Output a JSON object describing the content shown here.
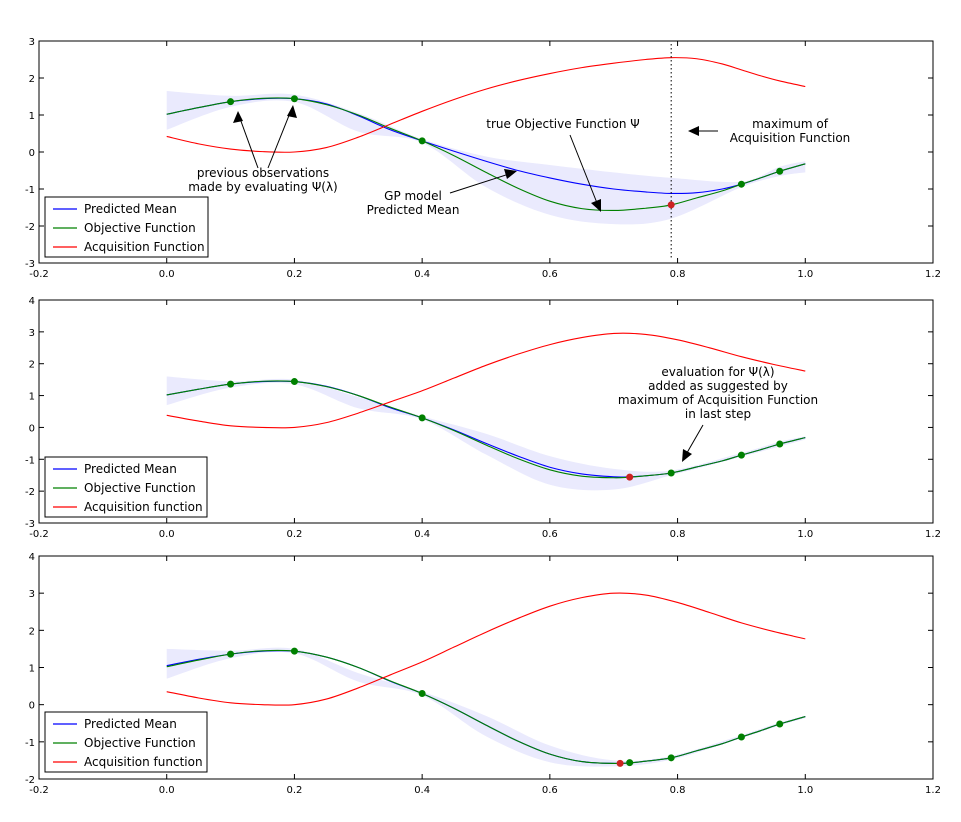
{
  "chart_data": [
    {
      "type": "line",
      "xlim": [
        -0.2,
        1.2
      ],
      "ylim": [
        -3,
        3
      ],
      "xticks": [
        "-0.2",
        "0.0",
        "0.2",
        "0.4",
        "0.6",
        "0.8",
        "1.0",
        "1.2"
      ],
      "yticks": [
        "-3",
        "-2",
        "-1",
        "0",
        "1",
        "2",
        "3"
      ],
      "band": {
        "x": [
          0.0,
          0.1,
          0.2,
          0.3,
          0.4,
          0.5,
          0.6,
          0.7,
          0.79,
          0.9,
          0.96,
          1.0
        ],
        "upper": [
          1.65,
          1.52,
          1.55,
          1.05,
          0.35,
          -0.12,
          -0.35,
          -0.55,
          -0.7,
          -0.8,
          -0.4,
          -0.25
        ],
        "lower": [
          0.6,
          1.22,
          1.35,
          0.55,
          0.25,
          -0.95,
          -1.7,
          -1.95,
          -1.8,
          -0.95,
          -0.65,
          -0.55
        ]
      },
      "series": [
        {
          "name": "Predicted Mean",
          "color": "#0000ff",
          "x": [
            0.0,
            0.05,
            0.1,
            0.15,
            0.2,
            0.25,
            0.3,
            0.35,
            0.4,
            0.45,
            0.5,
            0.55,
            0.6,
            0.65,
            0.7,
            0.75,
            0.79,
            0.83,
            0.87,
            0.9,
            0.93,
            0.96,
            1.0
          ],
          "y": [
            1.02,
            1.2,
            1.36,
            1.44,
            1.44,
            1.3,
            0.98,
            0.6,
            0.3,
            0.02,
            -0.25,
            -0.5,
            -0.7,
            -0.87,
            -1.0,
            -1.08,
            -1.12,
            -1.1,
            -1.0,
            -0.87,
            -0.7,
            -0.52,
            -0.32
          ]
        },
        {
          "name": "Objective Function",
          "color": "#008000",
          "x": [
            0.0,
            0.05,
            0.1,
            0.15,
            0.2,
            0.25,
            0.3,
            0.35,
            0.4,
            0.45,
            0.5,
            0.55,
            0.6,
            0.65,
            0.7,
            0.75,
            0.79,
            0.83,
            0.87,
            0.9,
            0.93,
            0.96,
            1.0
          ],
          "y": [
            1.02,
            1.2,
            1.36,
            1.45,
            1.44,
            1.28,
            1.0,
            0.64,
            0.3,
            -0.1,
            -0.55,
            -0.98,
            -1.33,
            -1.53,
            -1.58,
            -1.52,
            -1.43,
            -1.24,
            -1.05,
            -0.87,
            -0.7,
            -0.52,
            -0.32
          ]
        },
        {
          "name": "Acquisition Function",
          "color": "#ff0000",
          "x": [
            0.0,
            0.05,
            0.1,
            0.15,
            0.2,
            0.25,
            0.3,
            0.35,
            0.4,
            0.45,
            0.5,
            0.55,
            0.6,
            0.65,
            0.7,
            0.75,
            0.79,
            0.83,
            0.87,
            0.9,
            0.93,
            0.96,
            1.0
          ],
          "y": [
            0.42,
            0.22,
            0.08,
            0.01,
            0.0,
            0.12,
            0.4,
            0.75,
            1.1,
            1.42,
            1.7,
            1.93,
            2.12,
            2.28,
            2.4,
            2.5,
            2.55,
            2.52,
            2.38,
            2.22,
            2.06,
            1.92,
            1.77
          ]
        }
      ],
      "observations": {
        "x": [
          0.1,
          0.2,
          0.4,
          0.9,
          0.96
        ],
        "y": [
          1.36,
          1.44,
          0.3,
          -0.87,
          -0.52
        ],
        "color": "#008000"
      },
      "next_point": {
        "x": 0.79,
        "y": -1.43,
        "color": "#cc2222"
      },
      "vline": {
        "x": 0.79
      },
      "legend": {
        "placement": "lower-left",
        "entries": [
          "Predicted Mean",
          "Objective Function",
          "Acquisition Function"
        ]
      },
      "annotations": {
        "previous_observations": [
          "previous observations",
          "made by evaluating Ψ(λ)"
        ],
        "gp_model": [
          "GP model",
          "Predicted Mean"
        ],
        "true_objective": [
          "true Objective Function Ψ"
        ],
        "maximum_acquisition": [
          "maximum of",
          "Acquisition Function"
        ]
      }
    },
    {
      "type": "line",
      "xlim": [
        -0.2,
        1.2
      ],
      "ylim": [
        -3,
        4
      ],
      "xticks": [
        "-0.2",
        "0.0",
        "0.2",
        "0.4",
        "0.6",
        "0.8",
        "1.0",
        "1.2"
      ],
      "yticks": [
        "-3",
        "-2",
        "-1",
        "0",
        "1",
        "2",
        "3",
        "4"
      ],
      "band": {
        "x": [
          0.0,
          0.1,
          0.2,
          0.3,
          0.4,
          0.5,
          0.6,
          0.7,
          0.79,
          0.9,
          0.96,
          1.0
        ],
        "upper": [
          1.6,
          1.45,
          1.5,
          0.95,
          0.35,
          -0.2,
          -0.9,
          -1.3,
          -1.35,
          -0.8,
          -0.45,
          -0.28
        ],
        "lower": [
          0.7,
          1.25,
          1.35,
          0.6,
          0.25,
          -0.85,
          -1.8,
          -1.95,
          -1.5,
          -0.92,
          -0.6,
          -0.38
        ]
      },
      "series": [
        {
          "name": "Predicted Mean",
          "color": "#0000ff",
          "x": [
            0.0,
            0.05,
            0.1,
            0.15,
            0.2,
            0.25,
            0.3,
            0.35,
            0.4,
            0.45,
            0.5,
            0.55,
            0.6,
            0.65,
            0.7,
            0.725,
            0.75,
            0.79,
            0.83,
            0.87,
            0.9,
            0.93,
            0.96,
            1.0
          ],
          "y": [
            1.02,
            1.2,
            1.36,
            1.44,
            1.44,
            1.29,
            1.0,
            0.62,
            0.3,
            -0.08,
            -0.5,
            -0.9,
            -1.25,
            -1.46,
            -1.55,
            -1.55,
            -1.52,
            -1.43,
            -1.24,
            -1.05,
            -0.87,
            -0.7,
            -0.52,
            -0.32
          ]
        },
        {
          "name": "Objective Function",
          "color": "#008000",
          "x": [
            0.0,
            0.05,
            0.1,
            0.15,
            0.2,
            0.25,
            0.3,
            0.35,
            0.4,
            0.45,
            0.5,
            0.55,
            0.6,
            0.65,
            0.7,
            0.725,
            0.75,
            0.79,
            0.83,
            0.87,
            0.9,
            0.93,
            0.96,
            1.0
          ],
          "y": [
            1.02,
            1.2,
            1.36,
            1.45,
            1.44,
            1.28,
            1.0,
            0.64,
            0.3,
            -0.1,
            -0.55,
            -0.98,
            -1.33,
            -1.53,
            -1.58,
            -1.56,
            -1.52,
            -1.43,
            -1.24,
            -1.05,
            -0.87,
            -0.7,
            -0.52,
            -0.32
          ]
        },
        {
          "name": "Acquisition function",
          "color": "#ff0000",
          "x": [
            0.0,
            0.05,
            0.1,
            0.15,
            0.2,
            0.25,
            0.3,
            0.35,
            0.4,
            0.45,
            0.5,
            0.55,
            0.6,
            0.65,
            0.7,
            0.75,
            0.8,
            0.85,
            0.9,
            0.95,
            1.0
          ],
          "y": [
            0.38,
            0.2,
            0.05,
            0.0,
            0.0,
            0.15,
            0.45,
            0.8,
            1.15,
            1.55,
            1.95,
            2.3,
            2.6,
            2.82,
            2.95,
            2.92,
            2.75,
            2.5,
            2.22,
            1.98,
            1.77
          ]
        }
      ],
      "observations": {
        "x": [
          0.1,
          0.2,
          0.4,
          0.79,
          0.9,
          0.96
        ],
        "y": [
          1.36,
          1.44,
          0.3,
          -1.43,
          -0.87,
          -0.52
        ],
        "color": "#008000"
      },
      "next_point": {
        "x": 0.725,
        "y": -1.56,
        "color": "#cc2222"
      },
      "legend": {
        "placement": "lower-left",
        "entries": [
          "Predicted Mean",
          "Objective Function",
          "Acquisition function"
        ]
      },
      "annotations": {
        "evaluation": [
          "evaluation for Ψ(λ)",
          "added as suggested by",
          "maximum of Acquisition Function",
          "in last step"
        ]
      }
    },
    {
      "type": "line",
      "xlim": [
        -0.2,
        1.2
      ],
      "ylim": [
        -2,
        4
      ],
      "xticks": [
        "-0.2",
        "0.0",
        "0.2",
        "0.4",
        "0.6",
        "0.8",
        "1.0",
        "1.2"
      ],
      "yticks": [
        "-2",
        "-1",
        "0",
        "1",
        "2",
        "3",
        "4"
      ],
      "band": {
        "x": [
          0.0,
          0.1,
          0.2,
          0.3,
          0.4,
          0.5,
          0.6,
          0.7,
          0.79,
          0.9,
          0.96,
          1.0
        ],
        "upper": [
          1.5,
          1.45,
          1.5,
          0.85,
          0.35,
          -0.3,
          -1.1,
          -1.5,
          -1.38,
          -0.82,
          -0.48,
          -0.3
        ],
        "lower": [
          0.7,
          1.25,
          1.38,
          0.62,
          0.25,
          -0.85,
          -1.55,
          -1.66,
          -1.48,
          -0.9,
          -0.56,
          -0.36
        ]
      },
      "series": [
        {
          "name": "Predicted Mean",
          "color": "#0000ff",
          "x": [
            0.0,
            0.05,
            0.1,
            0.15,
            0.2,
            0.25,
            0.3,
            0.35,
            0.4,
            0.45,
            0.5,
            0.55,
            0.6,
            0.65,
            0.71,
            0.75,
            0.79,
            0.83,
            0.87,
            0.9,
            0.93,
            0.96,
            1.0
          ],
          "y": [
            1.05,
            1.22,
            1.36,
            1.44,
            1.44,
            1.28,
            1.0,
            0.63,
            0.3,
            -0.1,
            -0.55,
            -0.98,
            -1.33,
            -1.53,
            -1.58,
            -1.52,
            -1.43,
            -1.24,
            -1.05,
            -0.87,
            -0.7,
            -0.52,
            -0.32
          ]
        },
        {
          "name": "Objective Function",
          "color": "#008000",
          "x": [
            0.0,
            0.05,
            0.1,
            0.15,
            0.2,
            0.25,
            0.3,
            0.35,
            0.4,
            0.45,
            0.5,
            0.55,
            0.6,
            0.65,
            0.71,
            0.75,
            0.79,
            0.83,
            0.87,
            0.9,
            0.93,
            0.96,
            1.0
          ],
          "y": [
            1.02,
            1.2,
            1.36,
            1.45,
            1.44,
            1.28,
            1.0,
            0.64,
            0.3,
            -0.1,
            -0.55,
            -0.98,
            -1.33,
            -1.53,
            -1.58,
            -1.52,
            -1.43,
            -1.24,
            -1.05,
            -0.87,
            -0.7,
            -0.52,
            -0.32
          ]
        },
        {
          "name": "Acquisition function",
          "color": "#ff0000",
          "x": [
            0.0,
            0.05,
            0.1,
            0.15,
            0.2,
            0.25,
            0.3,
            0.35,
            0.4,
            0.45,
            0.5,
            0.55,
            0.6,
            0.65,
            0.7,
            0.75,
            0.8,
            0.85,
            0.9,
            0.95,
            1.0
          ],
          "y": [
            0.35,
            0.18,
            0.05,
            0.0,
            0.0,
            0.15,
            0.45,
            0.8,
            1.15,
            1.55,
            1.95,
            2.32,
            2.65,
            2.88,
            3.0,
            2.95,
            2.75,
            2.48,
            2.2,
            1.97,
            1.77
          ]
        }
      ],
      "observations": {
        "x": [
          0.1,
          0.2,
          0.4,
          0.725,
          0.79,
          0.9,
          0.96
        ],
        "y": [
          1.36,
          1.44,
          0.3,
          -1.56,
          -1.43,
          -0.87,
          -0.52
        ],
        "color": "#008000"
      },
      "next_point": {
        "x": 0.71,
        "y": -1.58,
        "color": "#cc2222"
      },
      "legend": {
        "placement": "lower-left",
        "entries": [
          "Predicted Mean",
          "Objective Function",
          "Acquisition function"
        ]
      },
      "annotations": {}
    }
  ]
}
